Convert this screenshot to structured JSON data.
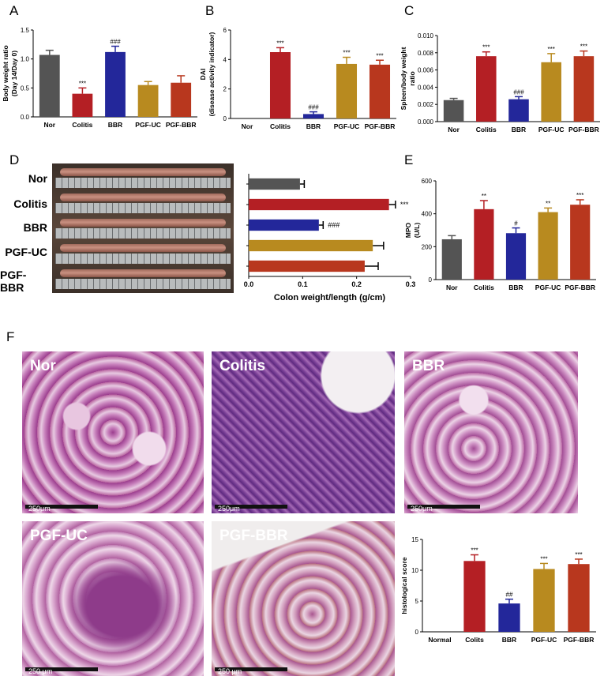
{
  "panels": {
    "A": "A",
    "B": "B",
    "C": "C",
    "D": "D",
    "E": "E",
    "F": "F"
  },
  "colors": {
    "nor": "#545454",
    "colitis": "#b41f24",
    "bbr": "#23279a",
    "pgf_uc": "#b88a1f",
    "pgf_bbr": "#b8371e"
  },
  "chart_data": [
    {
      "id": "A",
      "type": "bar",
      "categories": [
        "Nor",
        "Colitis",
        "BBR",
        "PGF-UC",
        "PGF-BBR"
      ],
      "values": [
        1.07,
        0.4,
        1.12,
        0.55,
        0.59
      ],
      "errors": [
        0.08,
        0.1,
        0.1,
        0.06,
        0.12
      ],
      "annotations": [
        "",
        "***",
        "###",
        "",
        ""
      ],
      "ylabel": "Body weight ratio (Day 14/Day 0)",
      "ylim": [
        0,
        1.5
      ],
      "yticks": [
        "0.0",
        "0.5",
        "1.0",
        "1.5"
      ]
    },
    {
      "id": "B",
      "type": "bar",
      "categories": [
        "Nor",
        "Colitis",
        "BBR",
        "PGF-UC",
        "PGF-BBR"
      ],
      "values": [
        0,
        4.5,
        0.3,
        3.7,
        3.65
      ],
      "errors": [
        0,
        0.3,
        0.15,
        0.45,
        0.3
      ],
      "annotations": [
        "",
        "***",
        "###",
        "***",
        "***"
      ],
      "ylabel": "DAI (disease activity indicator)",
      "ylim": [
        0,
        6
      ],
      "yticks": [
        "0",
        "2",
        "4",
        "6"
      ]
    },
    {
      "id": "C",
      "type": "bar",
      "categories": [
        "Nor",
        "Colitis",
        "BBR",
        "PGF-UC",
        "PGF-BBR"
      ],
      "values": [
        0.0025,
        0.0076,
        0.0026,
        0.0069,
        0.0076
      ],
      "errors": [
        0.0002,
        0.0005,
        0.0003,
        0.001,
        0.0006
      ],
      "annotations": [
        "",
        "***",
        "###",
        "***",
        "***"
      ],
      "ylabel": "Spleen/body weight ratio",
      "ylim": [
        0,
        0.01
      ],
      "yticks": [
        "0.000",
        "0.002",
        "0.004",
        "0.006",
        "0.008",
        "0.010"
      ]
    },
    {
      "id": "D",
      "type": "bar",
      "orientation": "horizontal",
      "categories": [
        "Nor",
        "Colitis",
        "BBR",
        "PGF-UC",
        "PGF-BBR"
      ],
      "values": [
        0.095,
        0.26,
        0.13,
        0.23,
        0.215
      ],
      "errors": [
        0.008,
        0.012,
        0.008,
        0.02,
        0.025
      ],
      "annotations": [
        "",
        "***",
        "###",
        "",
        ""
      ],
      "xlabel": "Colon weight/length (g/cm)",
      "xlim": [
        0,
        0.3
      ],
      "xticks": [
        "0.0",
        "0.1",
        "0.2",
        "0.3"
      ]
    },
    {
      "id": "E",
      "type": "bar",
      "categories": [
        "Nor",
        "Colitis",
        "BBR",
        "PGF-UC",
        "PGF-BBR"
      ],
      "values": [
        245,
        428,
        282,
        410,
        455
      ],
      "errors": [
        22,
        52,
        32,
        25,
        30
      ],
      "annotations": [
        "",
        "**",
        "#",
        "**",
        "***"
      ],
      "ylabel": "MPO (U/L)",
      "ylim": [
        0,
        600
      ],
      "yticks": [
        "0",
        "200",
        "400",
        "600"
      ]
    },
    {
      "id": "F",
      "type": "bar",
      "categories": [
        "Normal",
        "Colits",
        "BBR",
        "PGF-UC",
        "PGF-BBR"
      ],
      "values": [
        0,
        11.5,
        4.6,
        10.2,
        11.0
      ],
      "errors": [
        0,
        1.0,
        0.7,
        0.9,
        0.8
      ],
      "annotations": [
        "",
        "***",
        "##",
        "***",
        "***"
      ],
      "ylabel": "histological score",
      "ylim": [
        0,
        15
      ],
      "yticks": [
        "0",
        "5",
        "10",
        "15"
      ]
    }
  ],
  "photo_labels": [
    "Nor",
    "Colitis",
    "BBR",
    "PGF-UC",
    "PGF-BBR"
  ],
  "histology": [
    {
      "label": "Nor",
      "scale": "250μm"
    },
    {
      "label": "Colitis",
      "scale": "250μm"
    },
    {
      "label": "BBR",
      "scale": "250μm"
    },
    {
      "label": "PGF-UC",
      "scale": "250 μm"
    },
    {
      "label": "PGF-BBR",
      "scale": "250 μm"
    }
  ]
}
